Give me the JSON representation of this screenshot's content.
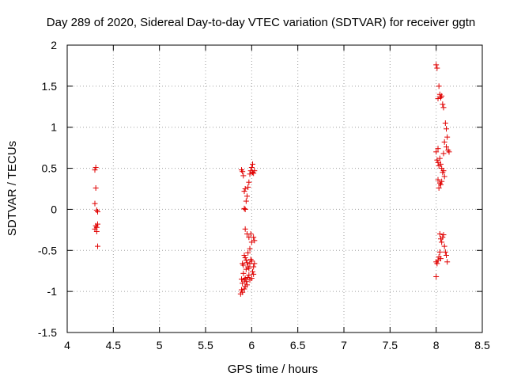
{
  "chart_data": {
    "type": "scatter",
    "title": "Day 289 of 2020, Sidereal Day-to-day VTEC variation (SDTVAR) for receiver ggtn",
    "xlabel": "GPS time / hours",
    "ylabel": "SDTVAR / TECUs",
    "xlim": [
      4,
      8.5
    ],
    "ylim": [
      -1.5,
      2
    ],
    "xticks": [
      4,
      4.5,
      5,
      5.5,
      6,
      6.5,
      7,
      7.5,
      8,
      8.5
    ],
    "xtick_labels": [
      "4",
      "4.5",
      "5",
      "5.5",
      "6",
      "6.5",
      "7",
      "7.5",
      "8",
      "8.5"
    ],
    "yticks": [
      -1.5,
      -1,
      -0.5,
      0,
      0.5,
      1,
      1.5,
      2
    ],
    "ytick_labels": [
      "-1.5",
      "-1",
      "-0.5",
      "0",
      "0.5",
      "1",
      "1.5",
      "2"
    ],
    "grid": true,
    "marker": "+",
    "color": "#e00000",
    "series": [
      {
        "name": "SDTVAR",
        "points": [
          [
            4.3,
            0.48
          ],
          [
            4.31,
            0.51
          ],
          [
            4.31,
            0.26
          ],
          [
            4.3,
            0.07
          ],
          [
            4.32,
            -0.01
          ],
          [
            4.33,
            -0.03
          ],
          [
            4.31,
            -0.2
          ],
          [
            4.32,
            -0.22
          ],
          [
            4.3,
            -0.24
          ],
          [
            4.33,
            -0.18
          ],
          [
            4.32,
            -0.27
          ],
          [
            4.33,
            -0.45
          ],
          [
            5.89,
            0.48
          ],
          [
            5.9,
            0.46
          ],
          [
            5.91,
            0.41
          ],
          [
            5.92,
            0.22
          ],
          [
            5.93,
            0.25
          ],
          [
            5.92,
            0.01
          ],
          [
            5.93,
            0.0
          ],
          [
            5.94,
            0.1
          ],
          [
            5.95,
            0.16
          ],
          [
            5.96,
            0.27
          ],
          [
            5.97,
            0.33
          ],
          [
            5.98,
            0.43
          ],
          [
            5.99,
            0.47
          ],
          [
            6.0,
            0.51
          ],
          [
            6.01,
            0.55
          ],
          [
            6.01,
            0.45
          ],
          [
            6.02,
            0.44
          ],
          [
            6.03,
            0.47
          ],
          [
            5.93,
            -0.24
          ],
          [
            5.95,
            -0.3
          ],
          [
            5.97,
            -0.34
          ],
          [
            5.99,
            -0.3
          ],
          [
            6.0,
            -0.4
          ],
          [
            6.02,
            -0.34
          ],
          [
            6.03,
            -0.38
          ],
          [
            5.9,
            -0.66
          ],
          [
            5.91,
            -0.68
          ],
          [
            5.92,
            -0.56
          ],
          [
            5.93,
            -0.59
          ],
          [
            5.94,
            -0.62
          ],
          [
            5.95,
            -0.65
          ],
          [
            5.96,
            -0.7
          ],
          [
            5.97,
            -0.72
          ],
          [
            5.98,
            -0.66
          ],
          [
            5.99,
            -0.61
          ],
          [
            6.0,
            -0.63
          ],
          [
            6.01,
            -0.76
          ],
          [
            6.02,
            -0.79
          ],
          [
            6.03,
            -0.66
          ],
          [
            5.89,
            -0.85
          ],
          [
            5.9,
            -0.9
          ],
          [
            5.91,
            -0.78
          ],
          [
            5.92,
            -0.86
          ],
          [
            5.93,
            -0.84
          ],
          [
            5.94,
            -0.88
          ],
          [
            5.95,
            -0.92
          ],
          [
            5.96,
            -0.83
          ],
          [
            5.97,
            -0.8
          ],
          [
            5.98,
            -0.86
          ],
          [
            5.88,
            -1.03
          ],
          [
            5.89,
            -0.98
          ],
          [
            5.9,
            -1.01
          ],
          [
            5.92,
            -0.97
          ],
          [
            5.93,
            -0.94
          ],
          [
            5.96,
            -0.53
          ],
          [
            5.98,
            -0.48
          ],
          [
            5.94,
            -0.73
          ],
          [
            6.0,
            -0.84
          ],
          [
            6.02,
            -0.7
          ],
          [
            8.0,
            1.76
          ],
          [
            8.01,
            1.72
          ],
          [
            8.03,
            1.5
          ],
          [
            8.04,
            1.4
          ],
          [
            8.05,
            1.36
          ],
          [
            8.06,
            1.38
          ],
          [
            8.07,
            1.28
          ],
          [
            8.08,
            1.24
          ],
          [
            8.02,
            1.35
          ],
          [
            8.1,
            1.05
          ],
          [
            8.11,
            0.98
          ],
          [
            8.12,
            0.88
          ],
          [
            8.09,
            0.82
          ],
          [
            8.11,
            0.76
          ],
          [
            8.13,
            0.72
          ],
          [
            8.14,
            0.7
          ],
          [
            8.08,
            0.68
          ],
          [
            8.02,
            0.74
          ],
          [
            8.0,
            0.7
          ],
          [
            8.01,
            0.6
          ],
          [
            8.02,
            0.57
          ],
          [
            8.03,
            0.53
          ],
          [
            8.04,
            0.62
          ],
          [
            8.05,
            0.55
          ],
          [
            8.06,
            0.5
          ],
          [
            8.07,
            0.45
          ],
          [
            8.08,
            0.47
          ],
          [
            8.09,
            0.4
          ],
          [
            8.04,
            0.32
          ],
          [
            8.05,
            0.3
          ],
          [
            8.03,
            0.26
          ],
          [
            8.02,
            0.36
          ],
          [
            8.06,
            0.34
          ],
          [
            8.04,
            -0.3
          ],
          [
            8.05,
            -0.36
          ],
          [
            8.06,
            -0.4
          ],
          [
            8.07,
            -0.34
          ],
          [
            8.08,
            -0.31
          ],
          [
            8.09,
            -0.45
          ],
          [
            8.1,
            -0.52
          ],
          [
            8.11,
            -0.56
          ],
          [
            8.12,
            -0.64
          ],
          [
            8.04,
            -0.52
          ],
          [
            8.03,
            -0.58
          ],
          [
            8.02,
            -0.62
          ],
          [
            8.01,
            -0.66
          ],
          [
            8.0,
            -0.64
          ],
          [
            8.05,
            -0.6
          ],
          [
            8.0,
            -0.82
          ]
        ]
      }
    ]
  }
}
